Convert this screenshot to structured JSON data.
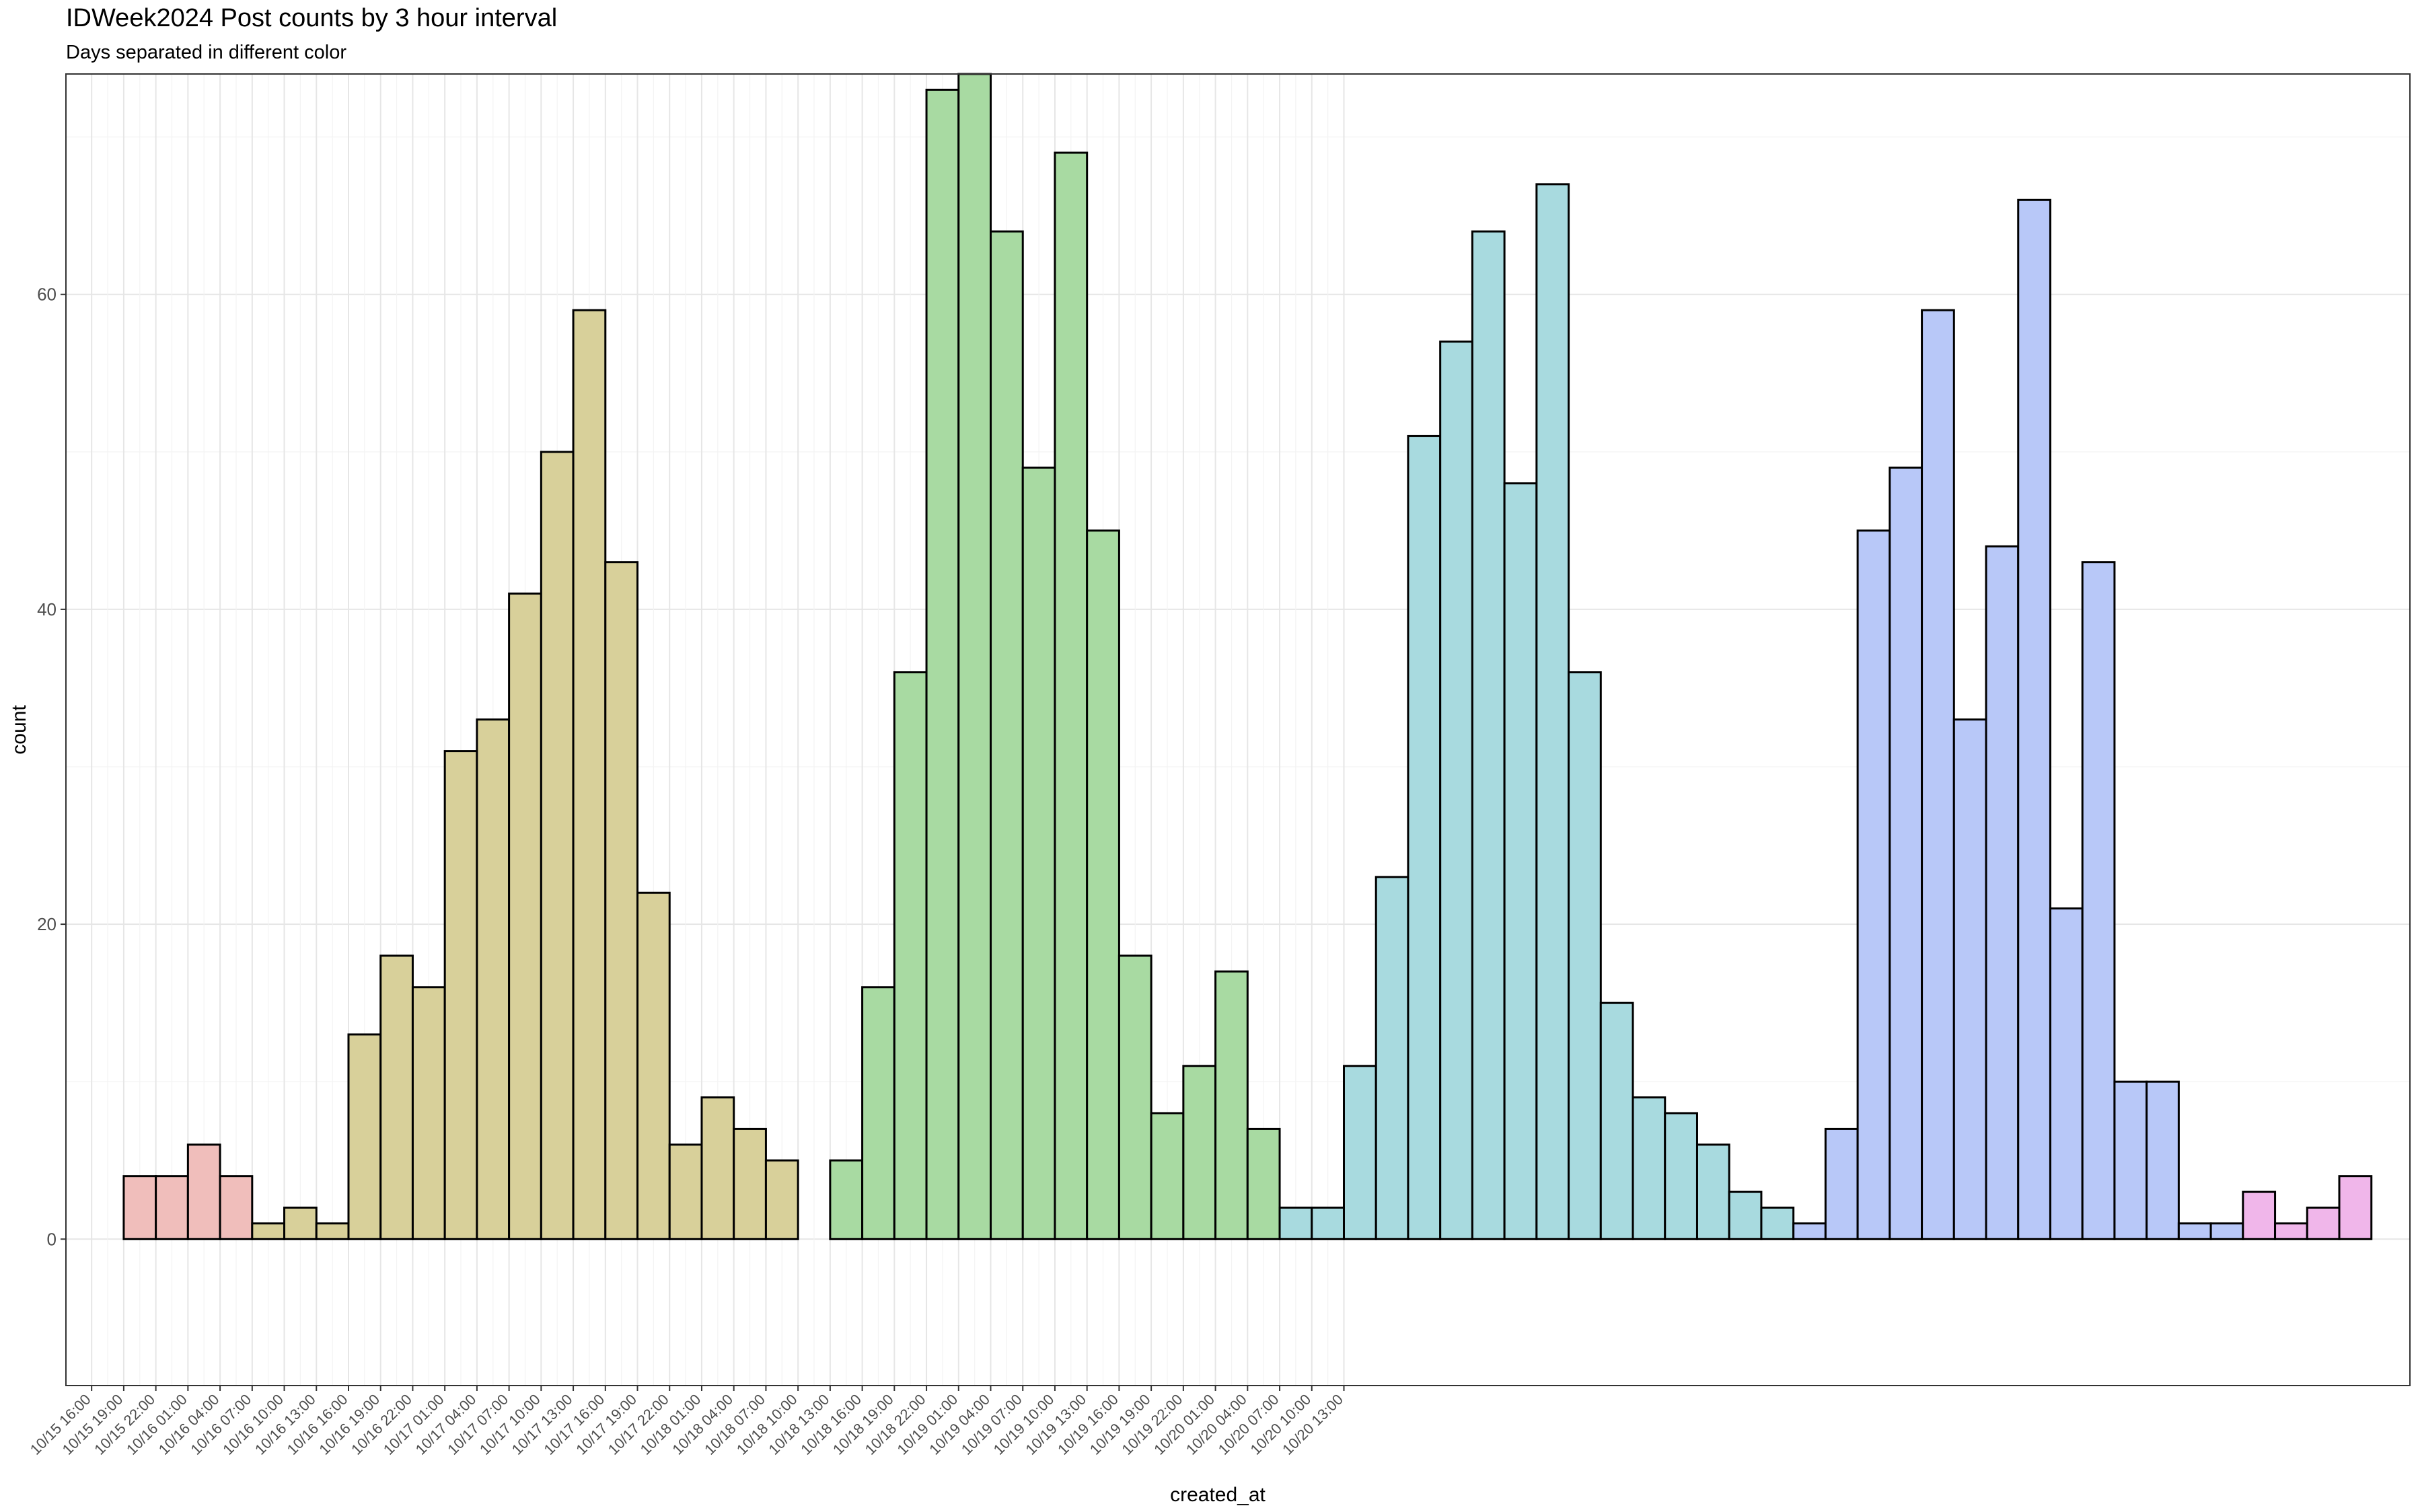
{
  "chart_data": {
    "type": "bar",
    "title": "IDWeek2024 Post counts by 3 hour interval",
    "subtitle": "Days separated in different color",
    "xlabel": "created_at",
    "ylabel": "count",
    "ylim": [
      -9.3,
      74
    ],
    "yticks": [
      0,
      20,
      40,
      60
    ],
    "xlim_bins": [
      -1.8,
      71.2
    ],
    "x_tick_labels": [
      "10/15 16:00",
      "10/15 19:00",
      "10/15 22:00",
      "10/16 01:00",
      "10/16 04:00",
      "10/16 07:00",
      "10/16 10:00",
      "10/16 13:00",
      "10/16 16:00",
      "10/16 19:00",
      "10/16 22:00",
      "10/17 01:00",
      "10/17 04:00",
      "10/17 07:00",
      "10/17 10:00",
      "10/17 13:00",
      "10/17 16:00",
      "10/17 19:00",
      "10/17 22:00",
      "10/18 01:00",
      "10/18 04:00",
      "10/18 07:00",
      "10/18 10:00",
      "10/18 13:00",
      "10/18 16:00",
      "10/18 19:00",
      "10/18 22:00",
      "10/19 01:00",
      "10/19 04:00",
      "10/19 07:00",
      "10/19 10:00",
      "10/19 13:00",
      "10/19 16:00",
      "10/19 19:00",
      "10/19 22:00",
      "10/20 01:00",
      "10/20 04:00",
      "10/20 07:00",
      "10/20 10:00",
      "10/20 13:00"
    ],
    "grid": true,
    "legend": "none",
    "day_colors": {
      "10/15": "#f0bebb",
      "10/16": "#d8d09a",
      "10/17": "#a8daa2",
      "10/18": "#a8dadf",
      "10/19": "#b8c8f8",
      "10/20": "#f0b6ea"
    },
    "series": [
      {
        "day": "10/15",
        "start_bin": 0,
        "values": [
          4,
          4,
          6,
          4
        ]
      },
      {
        "day": "10/16",
        "start_bin": 4,
        "values": [
          1,
          2,
          1,
          13,
          18,
          16,
          31,
          33,
          41,
          50,
          59,
          43,
          22,
          6,
          9,
          7,
          5
        ]
      },
      {
        "day": "10/17",
        "start_bin": 21,
        "values": [
          0,
          5,
          16,
          36,
          73,
          74,
          64,
          49,
          69,
          45,
          18,
          8,
          11,
          17,
          7
        ]
      },
      {
        "day": "10/18",
        "start_bin": 36,
        "values": [
          2,
          2,
          11,
          23,
          51,
          57,
          64,
          48,
          67,
          36,
          15,
          9,
          8,
          6,
          3,
          2
        ]
      },
      {
        "day": "10/19",
        "start_bin": 52,
        "values": [
          1,
          7,
          45,
          49,
          59,
          33,
          44,
          66,
          21,
          43,
          10,
          10,
          1,
          1
        ]
      },
      {
        "day": "10/20",
        "start_bin": 66,
        "values": [
          3,
          1,
          2,
          4
        ]
      }
    ]
  }
}
